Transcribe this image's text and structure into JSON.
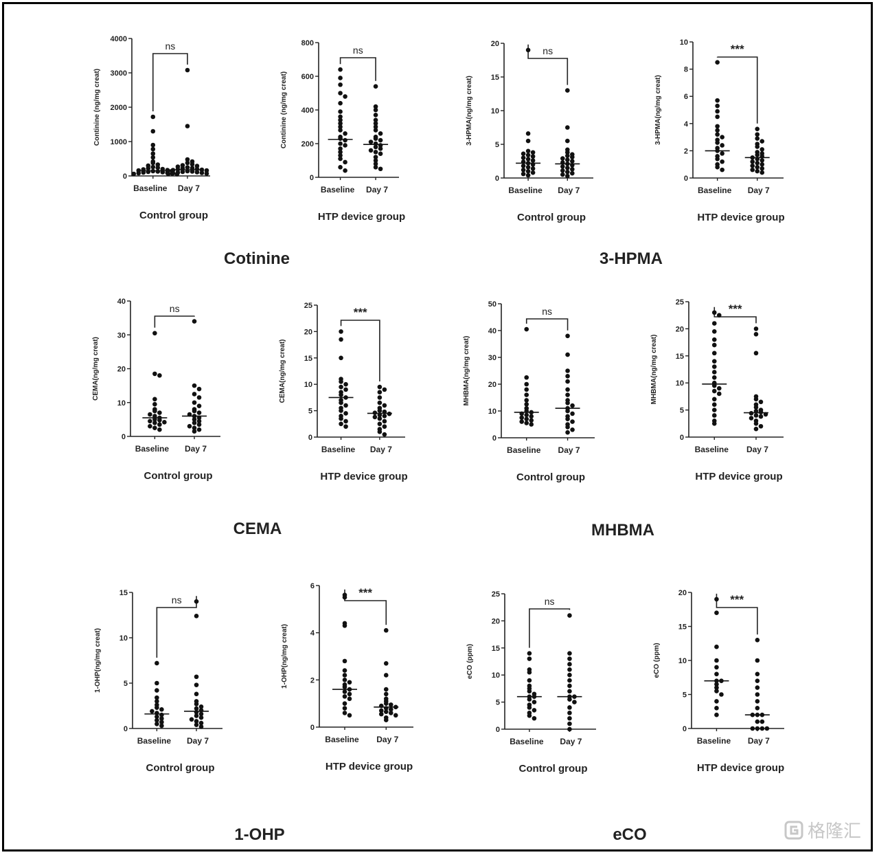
{
  "sections": [
    {
      "title": "Cotinine"
    },
    {
      "title": "3-HPMA"
    },
    {
      "title": "CEMA"
    },
    {
      "title": "MHBMA"
    },
    {
      "title": "1-OHP"
    },
    {
      "title": "eCO"
    }
  ],
  "watermark": {
    "text": "格隆汇",
    "icon": "gelonghui-logo-icon"
  },
  "chart_data": [
    {
      "type": "scatter",
      "ylabel": "Continine (ng/mg creat)",
      "group": "Control group",
      "categories": [
        "Baseline",
        "Day 7"
      ],
      "ylim": [
        0,
        4000
      ],
      "yticks": [
        0,
        1000,
        2000,
        3000,
        4000
      ],
      "significance": "ns",
      "series": [
        {
          "values": [
            1720,
            1300,
            900,
            780,
            650,
            540,
            420,
            380,
            330,
            300,
            260,
            240,
            220,
            200,
            190,
            170,
            160,
            150,
            140,
            130,
            120,
            110,
            100,
            90,
            80,
            70,
            60,
            50
          ]
        },
        {
          "values": [
            3080,
            1450,
            480,
            420,
            380,
            340,
            310,
            290,
            270,
            250,
            230,
            220,
            200,
            190,
            180,
            170,
            160,
            150,
            140,
            130,
            120,
            110,
            100,
            90,
            80,
            70,
            60
          ]
        }
      ],
      "medians": [
        150,
        180
      ]
    },
    {
      "type": "scatter",
      "ylabel": "Continine (ng/mg creat)",
      "group": "HTP device group",
      "categories": [
        "Baseline",
        "Day 7"
      ],
      "ylim": [
        0,
        800
      ],
      "yticks": [
        0,
        200,
        400,
        600,
        800
      ],
      "significance": "ns",
      "series": [
        {
          "values": [
            640,
            590,
            550,
            500,
            480,
            440,
            390,
            360,
            340,
            320,
            300,
            280,
            260,
            240,
            230,
            220,
            200,
            190,
            170,
            150,
            130,
            110,
            90,
            60,
            40
          ]
        },
        {
          "values": [
            540,
            420,
            400,
            370,
            340,
            320,
            300,
            280,
            260,
            240,
            230,
            220,
            210,
            200,
            190,
            180,
            170,
            160,
            150,
            140,
            120,
            100,
            80,
            60,
            50
          ]
        }
      ],
      "medians": [
        225,
        195
      ]
    },
    {
      "type": "scatter",
      "ylabel": "3-HPMA(ng/mg creat)",
      "group": "Control group",
      "categories": [
        "Baseline",
        "Day 7"
      ],
      "ylim": [
        0,
        20
      ],
      "yticks": [
        0,
        5,
        10,
        15,
        20
      ],
      "significance": "ns",
      "series": [
        {
          "values": [
            19,
            6.6,
            5.5,
            4,
            3.8,
            3.6,
            3.4,
            3.2,
            3,
            2.8,
            2.6,
            2.4,
            2.2,
            2,
            1.8,
            1.6,
            1.4,
            1.2,
            1,
            0.8,
            0.6,
            0.4
          ]
        },
        {
          "values": [
            13,
            7.5,
            5.5,
            4.2,
            3.8,
            3.5,
            3.3,
            3.1,
            2.9,
            2.7,
            2.5,
            2.3,
            2.1,
            1.9,
            1.7,
            1.5,
            1.3,
            1.1,
            0.9,
            0.7,
            0.5,
            0.3
          ]
        }
      ],
      "medians": [
        2.2,
        2.1
      ]
    },
    {
      "type": "scatter",
      "ylabel": "3-HPMA(ng/mg creat)",
      "group": "HTP device group",
      "categories": [
        "Baseline",
        "Day 7"
      ],
      "ylim": [
        0,
        10
      ],
      "yticks": [
        0,
        2,
        4,
        6,
        8,
        10
      ],
      "significance": "***",
      "series": [
        {
          "values": [
            8.5,
            5.7,
            5.3,
            4.9,
            4.5,
            3.8,
            3.5,
            3.2,
            3,
            2.8,
            2.6,
            2.4,
            2.2,
            2,
            1.8,
            1.6,
            1.4,
            1.2,
            1,
            0.8,
            0.6
          ]
        },
        {
          "values": [
            3.6,
            3.2,
            2.9,
            2.7,
            2.5,
            2.3,
            2.1,
            1.9,
            1.8,
            1.7,
            1.6,
            1.5,
            1.4,
            1.3,
            1.2,
            1.1,
            1,
            0.9,
            0.8,
            0.7,
            0.6,
            0.5,
            0.4
          ]
        }
      ],
      "medians": [
        2.0,
        1.5
      ]
    },
    {
      "type": "scatter",
      "ylabel": "CEMA(ng/mg creat)",
      "group": "Control group",
      "categories": [
        "Baseline",
        "Day 7"
      ],
      "ylim": [
        0,
        40
      ],
      "yticks": [
        0,
        10,
        20,
        30,
        40
      ],
      "significance": "ns",
      "series": [
        {
          "values": [
            30.5,
            18.5,
            18,
            11,
            9.5,
            8,
            7.5,
            7,
            6.5,
            6,
            5.5,
            5,
            4.8,
            4.5,
            4.2,
            4,
            3.5,
            3,
            2.5,
            2
          ]
        },
        {
          "values": [
            34,
            15,
            14,
            12.5,
            11.5,
            10,
            9,
            8,
            7.5,
            7,
            6.5,
            6,
            5.5,
            5,
            4.5,
            4,
            3.5,
            3,
            2.5,
            2,
            1.5
          ]
        }
      ],
      "medians": [
        5.5,
        6.0
      ]
    },
    {
      "type": "scatter",
      "ylabel": "CEMA(ng/mg creat)",
      "group": "HTP device group",
      "categories": [
        "Baseline",
        "Day 7"
      ],
      "ylim": [
        0,
        25
      ],
      "yticks": [
        0,
        5,
        10,
        15,
        20,
        25
      ],
      "significance": "***",
      "series": [
        {
          "values": [
            20,
            18.5,
            15,
            11,
            10.5,
            10,
            9.5,
            9,
            8.5,
            8,
            7.5,
            7,
            6.5,
            6,
            5.5,
            5,
            4.5,
            4,
            3.5,
            3,
            2.5,
            2
          ]
        },
        {
          "values": [
            9.5,
            9,
            8.5,
            7.5,
            6.5,
            6,
            5.5,
            5,
            4.8,
            4.6,
            4.4,
            4.2,
            4,
            3.8,
            3.5,
            3,
            2.5,
            2,
            1.5,
            1,
            0.5
          ]
        }
      ],
      "medians": [
        7.5,
        4.5
      ]
    },
    {
      "type": "scatter",
      "ylabel": "MHBMA(ng/mg creat)",
      "group": "Control group",
      "categories": [
        "Baseline",
        "Day 7"
      ],
      "ylim": [
        0,
        50
      ],
      "yticks": [
        0,
        10,
        20,
        30,
        40,
        50
      ],
      "significance": "ns",
      "series": [
        {
          "values": [
            40.5,
            22.5,
            20,
            18,
            16,
            14,
            12.5,
            11,
            10,
            9.5,
            9,
            8.5,
            8,
            7.5,
            7,
            6.5,
            6,
            5.5,
            5
          ]
        },
        {
          "values": [
            38,
            31,
            25,
            23,
            21,
            18,
            16,
            14,
            13,
            12,
            11,
            10,
            9,
            8,
            7,
            6,
            5,
            4,
            3,
            2
          ]
        }
      ],
      "medians": [
        9.5,
        11.0
      ]
    },
    {
      "type": "scatter",
      "ylabel": "MHBMA(ng/mg creat)",
      "group": "HTP device group",
      "categories": [
        "Baseline",
        "Day 7"
      ],
      "ylim": [
        0,
        25
      ],
      "yticks": [
        0,
        5,
        10,
        15,
        20,
        25
      ],
      "significance": "***",
      "series": [
        {
          "values": [
            23,
            22.5,
            21,
            19.5,
            18,
            17,
            15.5,
            14,
            13,
            12,
            11,
            10,
            9.5,
            9,
            8.5,
            8,
            7,
            6,
            5,
            4,
            3,
            2.5
          ]
        },
        {
          "values": [
            20,
            19,
            15.5,
            7.5,
            7,
            6.5,
            6,
            5.5,
            5,
            4.8,
            4.6,
            4.4,
            4.2,
            4,
            3.8,
            3.5,
            3,
            2.5,
            2,
            1.5
          ]
        }
      ],
      "medians": [
        9.8,
        4.5
      ]
    },
    {
      "type": "scatter",
      "ylabel": "1-OHP(ng/mg creat)",
      "group": "Control group",
      "categories": [
        "Baseline",
        "Day 7"
      ],
      "ylim": [
        0,
        15
      ],
      "yticks": [
        0,
        5,
        10,
        15
      ],
      "significance": "ns",
      "series": [
        {
          "values": [
            7.2,
            5,
            4.2,
            3.4,
            3,
            2.6,
            2.3,
            2.1,
            1.9,
            1.7,
            1.5,
            1.3,
            1.1,
            0.9,
            0.7,
            0.5,
            0.3
          ]
        },
        {
          "values": [
            14,
            12.4,
            5.7,
            4.8,
            3.8,
            3,
            2.7,
            2.4,
            2.2,
            2,
            1.8,
            1.6,
            1.4,
            1.2,
            1,
            0.8,
            0.6,
            0.4,
            0.2
          ]
        }
      ],
      "medians": [
        1.6,
        1.9
      ]
    },
    {
      "type": "scatter",
      "ylabel": "1-OHP(ng/mg creat)",
      "group": "HTP device group",
      "categories": [
        "Baseline",
        "Day 7"
      ],
      "ylim": [
        0,
        6
      ],
      "yticks": [
        0,
        2,
        4,
        6
      ],
      "significance": "***",
      "series": [
        {
          "values": [
            5.6,
            5.5,
            4.4,
            4.3,
            2.8,
            2.4,
            2.2,
            2,
            1.9,
            1.8,
            1.7,
            1.6,
            1.5,
            1.4,
            1.3,
            1.2,
            1,
            0.8,
            0.6,
            0.5
          ]
        },
        {
          "values": [
            4.1,
            2.7,
            2.2,
            1.6,
            1.4,
            1.2,
            1.1,
            1,
            0.95,
            0.9,
            0.85,
            0.8,
            0.75,
            0.7,
            0.65,
            0.6,
            0.55,
            0.5,
            0.4,
            0.3
          ]
        }
      ],
      "medians": [
        1.6,
        0.85
      ]
    },
    {
      "type": "scatter",
      "ylabel": "eCO (ppm)",
      "group": "Control group",
      "categories": [
        "Baseline",
        "Day 7"
      ],
      "ylim": [
        0,
        25
      ],
      "yticks": [
        0,
        5,
        10,
        15,
        20,
        25
      ],
      "significance": "ns",
      "series": [
        {
          "values": [
            14,
            13,
            11,
            10.5,
            9,
            8,
            7.5,
            7,
            6.5,
            6,
            6,
            5.5,
            5,
            4.5,
            4,
            3.5,
            3,
            2.5,
            2
          ]
        },
        {
          "values": [
            21,
            14,
            13,
            12,
            11,
            10,
            9,
            8,
            7,
            6,
            6,
            5.5,
            5,
            4,
            3,
            2,
            1,
            0
          ]
        }
      ],
      "medians": [
        6.0,
        6.0
      ]
    },
    {
      "type": "scatter",
      "ylabel": "eCO (ppm)",
      "group": "HTP device group",
      "categories": [
        "Baseline",
        "Day 7"
      ],
      "ylim": [
        0,
        20
      ],
      "yticks": [
        0,
        5,
        10,
        15,
        20
      ],
      "significance": "***",
      "series": [
        {
          "values": [
            19,
            17,
            12,
            10,
            9,
            8,
            7,
            7,
            6.5,
            6,
            5.5,
            5,
            4,
            3,
            2
          ]
        },
        {
          "values": [
            13,
            10,
            8,
            7,
            6,
            5,
            4,
            3,
            2,
            2,
            2,
            1,
            1,
            0,
            0,
            0,
            0
          ]
        }
      ],
      "medians": [
        7.0,
        2.0
      ]
    }
  ]
}
